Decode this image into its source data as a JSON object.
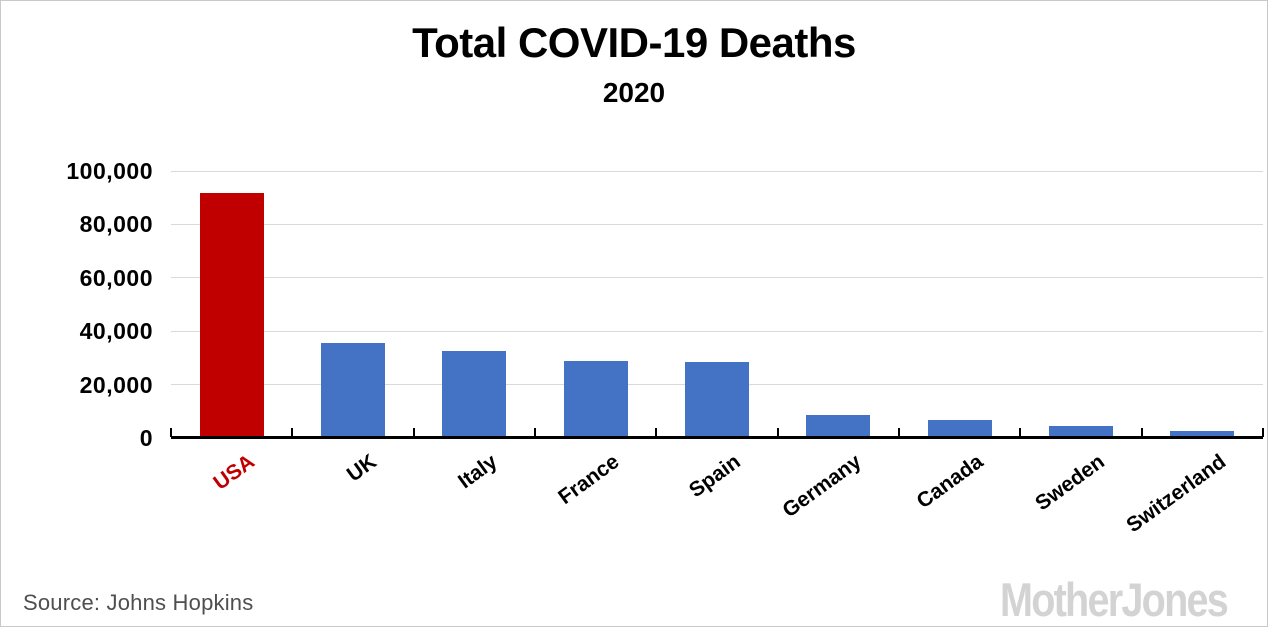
{
  "header": {
    "title": "Total COVID-19 Deaths",
    "subtitle": "2020"
  },
  "chart_data": {
    "type": "bar",
    "categories": [
      "USA",
      "UK",
      "Italy",
      "France",
      "Spain",
      "Germany",
      "Canada",
      "Sweden",
      "Switzerland"
    ],
    "values": [
      91000,
      35000,
      32000,
      28000,
      27700,
      8000,
      5900,
      3700,
      1900
    ],
    "title": "Total COVID-19 Deaths",
    "subtitle": "2020",
    "xlabel": "",
    "ylabel": "",
    "ylim": [
      0,
      100000
    ],
    "ytick_step": 20000,
    "ytick_labels": [
      "0",
      "20,000",
      "40,000",
      "60,000",
      "80,000",
      "100,000"
    ],
    "grid": true,
    "legend": "none",
    "bar_color": "#4472c4",
    "highlight_category": "USA",
    "highlight_color": "#c00000",
    "gridline_color": "#d9d9d9",
    "axis_color": "#000000"
  },
  "footer": {
    "source": "Source: Johns Hopkins",
    "logo": "MotherJones",
    "logo_color": "#d3d3d3"
  }
}
